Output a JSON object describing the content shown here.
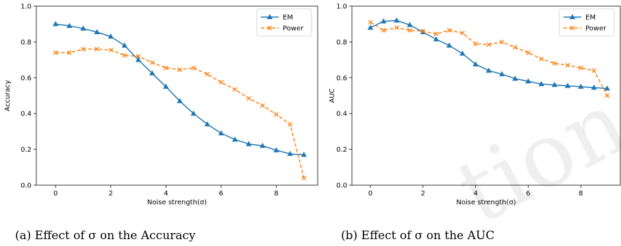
{
  "colors": {
    "em": "#1f77b4",
    "power": "#ff7f0e"
  },
  "watermark": "tion",
  "chart_data": [
    {
      "type": "line",
      "caption": "(a) Effect of σ on the Accuracy",
      "xlabel": "Noise strength(σ)",
      "ylabel": "Accuracy",
      "xlim": [
        -0.7,
        9.5
      ],
      "ylim": [
        0.0,
        1.0
      ],
      "xticks": [
        0,
        2,
        4,
        6,
        8
      ],
      "yticks": [
        0.0,
        0.2,
        0.4,
        0.6,
        0.8,
        1.0
      ],
      "x": [
        0,
        0.5,
        1,
        1.5,
        2,
        2.5,
        3,
        3.5,
        4,
        4.5,
        5,
        5.5,
        6,
        6.5,
        7,
        7.5,
        8,
        8.5,
        9
      ],
      "legend_position": "top-right",
      "series": [
        {
          "name": "EM",
          "marker": "triangle",
          "line": "solid",
          "values": [
            0.9,
            0.89,
            0.875,
            0.855,
            0.83,
            0.78,
            0.7,
            0.625,
            0.55,
            0.47,
            0.4,
            0.34,
            0.29,
            0.255,
            0.23,
            0.22,
            0.195,
            0.175,
            0.17
          ]
        },
        {
          "name": "Power",
          "marker": "x",
          "line": "dashed",
          "values": [
            0.74,
            0.74,
            0.76,
            0.76,
            0.755,
            0.725,
            0.72,
            0.685,
            0.655,
            0.645,
            0.655,
            0.62,
            0.575,
            0.535,
            0.485,
            0.445,
            0.395,
            0.34,
            0.04
          ]
        }
      ]
    },
    {
      "type": "line",
      "caption": "(b) Effect of σ on the AUC",
      "xlabel": "Noise strength(σ)",
      "ylabel": "AUC",
      "xlim": [
        -0.7,
        9.5
      ],
      "ylim": [
        0.0,
        1.0
      ],
      "xticks": [
        0,
        2,
        4,
        6,
        8
      ],
      "yticks": [
        0.0,
        0.2,
        0.4,
        0.6,
        0.8,
        1.0
      ],
      "x": [
        0,
        0.5,
        1,
        1.5,
        2,
        2.5,
        3,
        3.5,
        4,
        4.5,
        5,
        5.5,
        6,
        6.5,
        7,
        7.5,
        8,
        8.5,
        9
      ],
      "legend_position": "top-right",
      "series": [
        {
          "name": "EM",
          "marker": "triangle",
          "line": "solid",
          "values": [
            0.88,
            0.915,
            0.92,
            0.895,
            0.855,
            0.815,
            0.78,
            0.735,
            0.675,
            0.64,
            0.62,
            0.595,
            0.58,
            0.565,
            0.56,
            0.555,
            0.55,
            0.545,
            0.54
          ]
        },
        {
          "name": "Power",
          "marker": "x",
          "line": "dashed",
          "values": [
            0.91,
            0.865,
            0.88,
            0.865,
            0.86,
            0.845,
            0.865,
            0.85,
            0.79,
            0.785,
            0.8,
            0.77,
            0.74,
            0.705,
            0.68,
            0.67,
            0.655,
            0.64,
            0.5
          ]
        }
      ]
    }
  ]
}
